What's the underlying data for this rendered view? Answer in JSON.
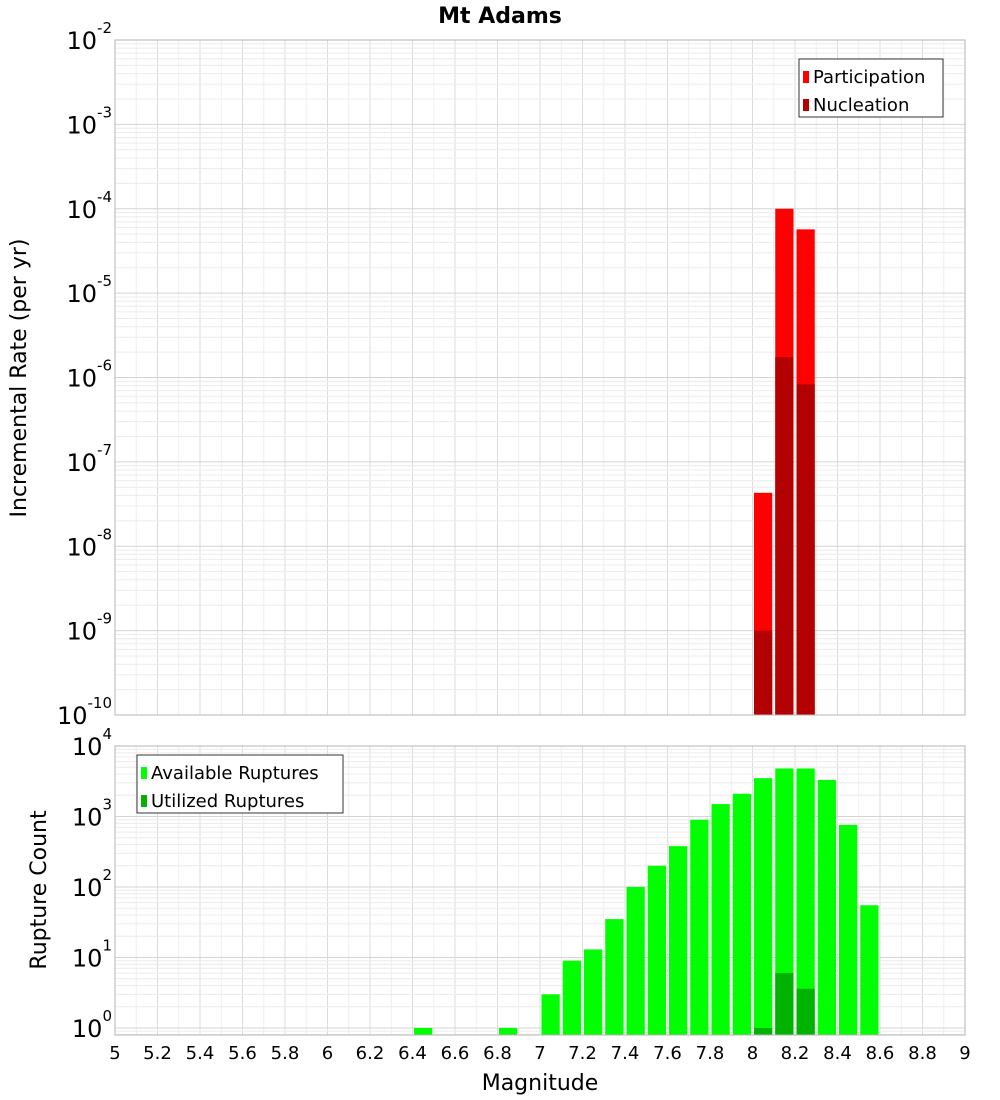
{
  "title": "Mt Adams",
  "chart_data": [
    {
      "type": "bar",
      "y_scale": "log",
      "ylabel": "Incremental Rate (per yr)",
      "xlabel": "",
      "xlim": [
        5,
        9
      ],
      "ylim_exponents": [
        -10,
        -2
      ],
      "y_tick_base": "10",
      "y_tick_exponents": [
        -10,
        -9,
        -8,
        -7,
        -6,
        -5,
        -4,
        -3,
        -2
      ],
      "bin_width": 0.1,
      "grid": true,
      "legend_position": "top-right",
      "series": [
        {
          "name": "Participation",
          "color": "#ff0000",
          "x": [
            8.05,
            8.15,
            8.25
          ],
          "y": [
            4.3e-08,
            0.0001,
            5.7e-05
          ]
        },
        {
          "name": "Nucleation",
          "color": "#b30000",
          "x": [
            8.05,
            8.15,
            8.25
          ],
          "y": [
            1e-09,
            1.75e-06,
            8.3e-07
          ]
        }
      ]
    },
    {
      "type": "bar",
      "y_scale": "log",
      "ylabel": "Rupture Count",
      "xlabel": "Magnitude",
      "xlim": [
        5,
        9
      ],
      "ylim_exponents": [
        -0.1,
        4
      ],
      "y_tick_base": "10",
      "y_tick_exponents": [
        0,
        1,
        2,
        3,
        4
      ],
      "x_ticks": [
        "5",
        "5.2",
        "5.4",
        "5.6",
        "5.8",
        "6",
        "6.2",
        "6.4",
        "6.6",
        "6.8",
        "7",
        "7.2",
        "7.4",
        "7.6",
        "7.8",
        "8",
        "8.2",
        "8.4",
        "8.6",
        "8.8",
        "9"
      ],
      "bin_width": 0.1,
      "grid": true,
      "legend_position": "top-left",
      "series": [
        {
          "name": "Available Ruptures",
          "color": "#00ff00",
          "x": [
            6.45,
            6.85,
            7.05,
            7.15,
            7.25,
            7.35,
            7.45,
            7.55,
            7.65,
            7.75,
            7.85,
            7.95,
            8.05,
            8.15,
            8.25,
            8.35,
            8.45,
            8.55
          ],
          "y": [
            1,
            1,
            3,
            9,
            13,
            35,
            100,
            200,
            380,
            900,
            1500,
            2100,
            3500,
            4800,
            4800,
            3300,
            760,
            55
          ]
        },
        {
          "name": "Utilized Ruptures",
          "color": "#00b300",
          "x": [
            8.05,
            8.15,
            8.25
          ],
          "y": [
            1,
            6,
            3.6
          ]
        }
      ]
    }
  ]
}
